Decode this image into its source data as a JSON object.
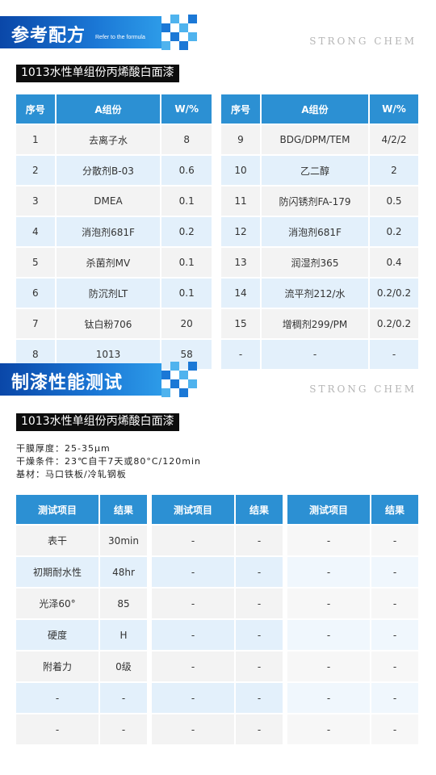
{
  "brand": "STRONG CHEM",
  "colors": {
    "accent": "#2c90d3",
    "banner": "#0a47a8"
  },
  "section1": {
    "title": "参考配方",
    "subtitle": "Refer to the formula",
    "product": "1013水性单组份丙烯酸白面漆",
    "headers": [
      "序号",
      "A组份",
      "W/%"
    ],
    "left_rows": [
      [
        "1",
        "去离子水",
        "8"
      ],
      [
        "2",
        "分散剂B-03",
        "0.6"
      ],
      [
        "3",
        "DMEA",
        "0.1"
      ],
      [
        "4",
        "消泡剂681F",
        "0.2"
      ],
      [
        "5",
        "杀菌剂MV",
        "0.1"
      ],
      [
        "6",
        "防沉剂LT",
        "0.1"
      ],
      [
        "7",
        "钛白粉706",
        "20"
      ],
      [
        "8",
        "1013",
        "58"
      ]
    ],
    "right_rows": [
      [
        "9",
        "BDG/DPM/TEM",
        "4/2/2"
      ],
      [
        "10",
        "乙二醇",
        "2"
      ],
      [
        "11",
        "防闪锈剂FA-179",
        "0.5"
      ],
      [
        "12",
        "消泡剂681F",
        "0.2"
      ],
      [
        "13",
        "润湿剂365",
        "0.4"
      ],
      [
        "14",
        "流平剂212/水",
        "0.2/0.2"
      ],
      [
        "15",
        "增稠剂299/PM",
        "0.2/0.2"
      ],
      [
        "-",
        "-",
        "-"
      ]
    ]
  },
  "section2": {
    "title": "制漆性能测试",
    "product": "1013水性单组份丙烯酸白面漆",
    "notes": [
      "干膜厚度：25-35μm",
      "干燥条件：23℃自干7天或80°C/120min",
      "基材：马口铁板/冷轧钢板"
    ],
    "headers": [
      "测试项目",
      "结果"
    ],
    "table1": [
      [
        "表干",
        "30min"
      ],
      [
        "初期耐水性",
        "48hr"
      ],
      [
        "光泽60°",
        "85"
      ],
      [
        "硬度",
        "H"
      ],
      [
        "附着力",
        "0级"
      ],
      [
        "-",
        "-"
      ],
      [
        "-",
        "-"
      ]
    ],
    "table2": [
      [
        "-",
        "-"
      ],
      [
        "-",
        "-"
      ],
      [
        "-",
        "-"
      ],
      [
        "-",
        "-"
      ],
      [
        "-",
        "-"
      ],
      [
        "-",
        "-"
      ],
      [
        "-",
        "-"
      ]
    ],
    "table3": [
      [
        "-",
        "-"
      ],
      [
        "-",
        "-"
      ],
      [
        "-",
        "-"
      ],
      [
        "-",
        "-"
      ],
      [
        "-",
        "-"
      ],
      [
        "-",
        "-"
      ],
      [
        "-",
        "-"
      ]
    ]
  }
}
